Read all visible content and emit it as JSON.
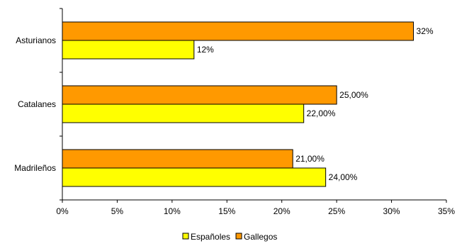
{
  "chart_data": {
    "type": "bar",
    "orientation": "horizontal",
    "categories": [
      "Asturianos",
      "Catalanes",
      "Madrileños"
    ],
    "series": [
      {
        "name": "Españoles",
        "color": "#FFFF00",
        "values": [
          0.12,
          0.22,
          0.24
        ],
        "labels": [
          "12%",
          "22,00%",
          "24,00%"
        ]
      },
      {
        "name": "Gallegos",
        "color": "#FF9900",
        "values": [
          0.32,
          0.25,
          0.21
        ],
        "labels": [
          "32%",
          "25,00%",
          "21,00%"
        ]
      }
    ],
    "xlim": [
      0,
      0.35
    ],
    "x_ticks": [
      0,
      0.05,
      0.1,
      0.15,
      0.2,
      0.25,
      0.3,
      0.35
    ],
    "x_tick_labels": [
      "0%",
      "5%",
      "10%",
      "15%",
      "20%",
      "25%",
      "30%",
      "35%"
    ],
    "grid": false,
    "legend_position": "bottom",
    "title": "",
    "xlabel": "",
    "ylabel": ""
  }
}
